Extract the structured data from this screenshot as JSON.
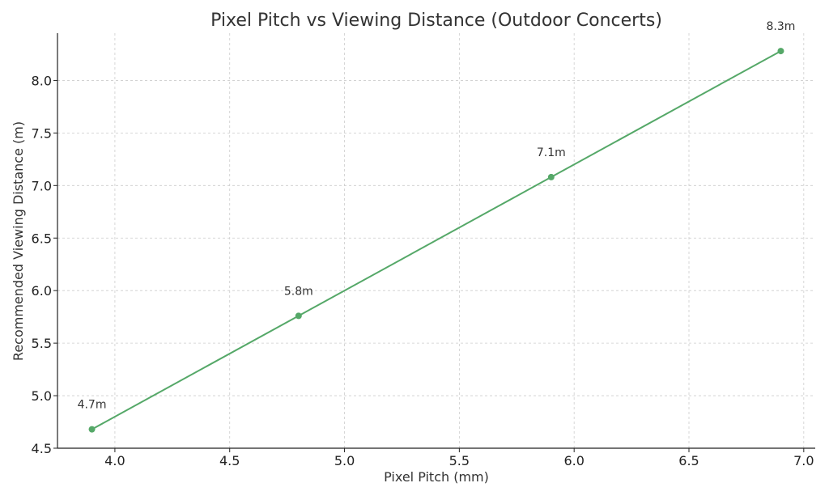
{
  "chart_data": {
    "type": "line",
    "title": "Pixel Pitch vs Viewing Distance (Outdoor Concerts)",
    "xlabel": "Pixel Pitch (mm)",
    "ylabel": "Recommended Viewing Distance (m)",
    "xlim": [
      3.75,
      7.05
    ],
    "ylim": [
      4.5,
      8.45
    ],
    "xticks": [
      4.0,
      4.5,
      5.0,
      5.5,
      6.0,
      6.5,
      7.0
    ],
    "yticks": [
      4.5,
      5.0,
      5.5,
      6.0,
      6.5,
      7.0,
      7.5,
      8.0
    ],
    "xtick_labels": [
      "4.0",
      "4.5",
      "5.0",
      "5.5",
      "6.0",
      "6.5",
      "7.0"
    ],
    "ytick_labels": [
      "4.5",
      "5.0",
      "5.5",
      "6.0",
      "6.5",
      "7.0",
      "7.5",
      "8.0"
    ],
    "grid": true,
    "color": "#55a868",
    "series": [
      {
        "x": [
          3.9,
          4.8,
          5.9,
          6.9
        ],
        "y": [
          4.68,
          5.76,
          7.08,
          8.28
        ],
        "labels": [
          "4.7m",
          "5.8m",
          "7.1m",
          "8.3m"
        ]
      }
    ]
  }
}
